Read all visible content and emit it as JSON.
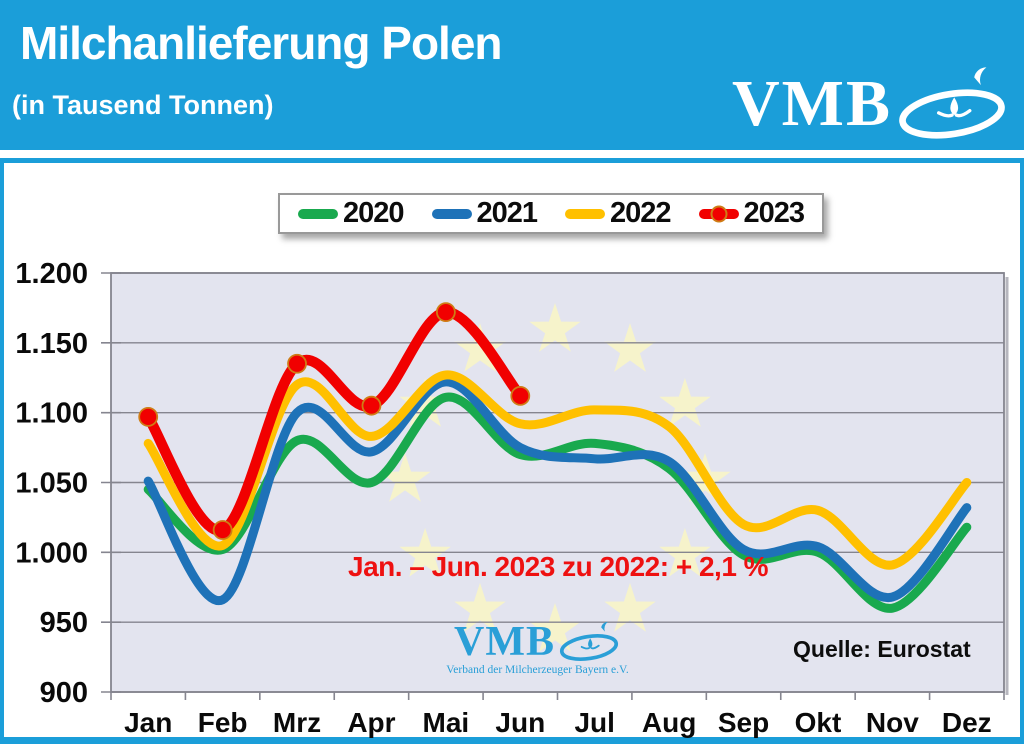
{
  "header": {
    "title": "Milchanlieferung Polen",
    "subtitle": "(in Tausend Tonnen)",
    "logo_text": "VMB"
  },
  "panel": {
    "annotation": "Jan. – Jun. 2023 zu 2022: + 2,1 %",
    "source": "Quelle: Eurostat",
    "watermark": {
      "logo_text": "VMB",
      "caption": "Verband der Milcherzeuger Bayern e.V."
    }
  },
  "colors": {
    "header_bg": "#1b9ed9",
    "plot_bg": "#e3e4ef",
    "star": "#f6f3cb",
    "grid": "#85858f",
    "axis_text": "#0a0a0a",
    "annotation_red": "#ee1111",
    "marker_ring": "#cf7c16"
  },
  "chart_data": {
    "type": "line",
    "title": "Milchanlieferung Polen (in Tausend Tonnen)",
    "xlabel": "",
    "ylabel": "Tausend Tonnen",
    "categories": [
      "Jan",
      "Feb",
      "Mrz",
      "Apr",
      "Mai",
      "Jun",
      "Jul",
      "Aug",
      "Sep",
      "Okt",
      "Nov",
      "Dez"
    ],
    "series": [
      {
        "name": "2020",
        "color": "#19a94e",
        "markers": false,
        "values": [
          1045,
          1002,
          1080,
          1050,
          1111,
          1070,
          1078,
          1060,
          998,
          1000,
          960,
          1018
        ]
      },
      {
        "name": "2021",
        "color": "#1e72b8",
        "markers": false,
        "values": [
          1051,
          966,
          1100,
          1072,
          1122,
          1075,
          1067,
          1065,
          1002,
          1004,
          968,
          1032
        ]
      },
      {
        "name": "2022",
        "color": "#ffc000",
        "markers": false,
        "values": [
          1078,
          1005,
          1120,
          1083,
          1127,
          1092,
          1102,
          1090,
          1020,
          1030,
          991,
          1050
        ]
      },
      {
        "name": "2023",
        "color": "#f10000",
        "markers": true,
        "values": [
          1097,
          1016,
          1135,
          1105,
          1172,
          1112
        ]
      }
    ],
    "ylim": [
      900,
      1200
    ],
    "y_ticks": [
      {
        "value": 1200,
        "label": "1.200"
      },
      {
        "value": 1150,
        "label": "1.150"
      },
      {
        "value": 1100,
        "label": "1.100"
      },
      {
        "value": 1050,
        "label": "1.050"
      },
      {
        "value": 1000,
        "label": "1.000"
      },
      {
        "value": 950,
        "label": "950"
      },
      {
        "value": 900,
        "label": "900"
      }
    ],
    "grid": true,
    "legend_position": "top",
    "background_watermark": "eu-stars"
  }
}
